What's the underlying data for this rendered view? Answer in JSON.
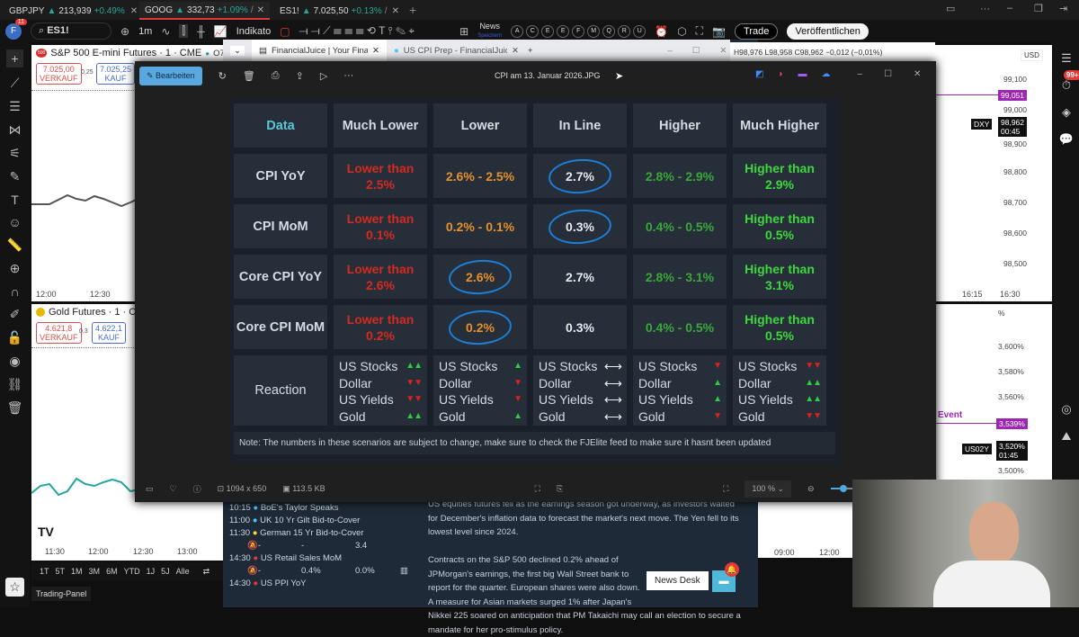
{
  "browser_tabs": [
    {
      "symbol": "GBPJPY",
      "price": "213,939",
      "change": "+0.49%",
      "suffix": "/"
    },
    {
      "symbol": "GOOG",
      "price": "332,73",
      "change": "+1.09%",
      "suffix": "/ Equ"
    },
    {
      "symbol": "ES1!",
      "price": "7.025,50",
      "change": "+0.13%",
      "suffix": "/ New"
    }
  ],
  "toolbar": {
    "avatar": "F",
    "badge": "11",
    "symbol": "ES1!",
    "interval": "1m",
    "indicators": "Indikato",
    "news": "News",
    "news_sub": "Speichern",
    "letters": [
      "A",
      "C",
      "E",
      "E",
      "F",
      "M",
      "Q",
      "R",
      "U"
    ],
    "trade": "Trade",
    "publish": "Veröffentlichen"
  },
  "chart_top": {
    "title": "S&P 500 E-mini Futures · 1 · CME",
    "ohlc": "O7.026,",
    "sell_price": "7.025,00",
    "sell_label": "VERKAUF",
    "spread": "0,25",
    "buy_price": "7.025,25",
    "buy_label": "KAUF",
    "times": [
      "12:00",
      "12:30"
    ]
  },
  "chart_gold": {
    "title": "Gold Futures · 1 · COM",
    "sell_price": "4.621,8",
    "sell_label": "VERKAUF",
    "spread": "0,3",
    "buy_price": "4.622,1",
    "buy_label": "KAUF",
    "times": [
      "11:30",
      "12:00",
      "12:30",
      "13:00"
    ],
    "ranges": [
      "1T",
      "5T",
      "1M",
      "3M",
      "6M",
      "YTD",
      "1J",
      "5J",
      "Alle"
    ],
    "panel": "Trading-Panel"
  },
  "chart_right": {
    "ohlc": "H98,976 L98,958 C98,962 −0,012 (−0,01%)",
    "currency": "USD",
    "prices": [
      "99,100",
      "99,000",
      "98,900",
      "98,800",
      "98,700",
      "98,600",
      "98,500"
    ],
    "purple_tag": "99,051",
    "symbol_tag": "DXY",
    "last": "98,962",
    "countdown": "00:45",
    "times": [
      "16:15",
      "16:30"
    ],
    "notif": "99+"
  },
  "chart_right2": {
    "unit": "%",
    "prices": [
      "3,600%",
      "3,580%",
      "3,560%",
      "3,500%"
    ],
    "event": "Event",
    "purple_tag": "3,539%",
    "symbol_tag": "US02Y",
    "last": "3,520%",
    "countdown": "01:45",
    "times": [
      "09:00",
      "12:00"
    ]
  },
  "browser": {
    "tabs": [
      {
        "label": "FinancialJuice | Your Financial U"
      },
      {
        "label": "US CPI Prep - FinancialJuice"
      }
    ]
  },
  "viewer": {
    "edit": "Bearbeiten",
    "filename": "CPI am 13. Januar 2026.JPG",
    "dimensions": "1094 x 650",
    "size": "113.5 KB",
    "zoom": "100 %"
  },
  "cpi_table": {
    "headers": [
      "Data",
      "Much Lower",
      "Lower",
      "In Line",
      "Higher",
      "Much Higher"
    ],
    "rows": [
      {
        "label": "CPI YoY",
        "values": [
          "Lower than 2.5%",
          "2.6% - 2.5%",
          "2.7%",
          "2.8% - 2.9%",
          "Higher than 2.9%"
        ],
        "circled": 2
      },
      {
        "label": "CPI MoM",
        "values": [
          "Lower than 0.1%",
          "0.2% - 0.1%",
          "0.3%",
          "0.4% - 0.5%",
          "Higher than 0.5%"
        ],
        "circled": 2
      },
      {
        "label": "Core CPI YoY",
        "values": [
          "Lower than 2.6%",
          "2.6%",
          "2.7%",
          "2.8% - 3.1%",
          "Higher than 3.1%"
        ],
        "circled": 1
      },
      {
        "label": "Core CPI MoM",
        "values": [
          "Lower than 0.2%",
          "0.2%",
          "0.3%",
          "0.4% - 0.5%",
          "Higher than 0.5%"
        ],
        "circled": 1
      }
    ],
    "colors": [
      "#d42a22",
      "#e8902a",
      "#e6e9ee",
      "#3aa83a",
      "#3ed83e"
    ],
    "data_color": "#5cc6d6",
    "reaction_label": "Reaction",
    "assets": [
      "US Stocks",
      "Dollar",
      "US Yields",
      "Gold"
    ],
    "reactions": [
      [
        "▲▲",
        "▼▼",
        "▼▼",
        "▲▲"
      ],
      [
        "▲",
        "▼",
        "▼",
        "▲"
      ],
      [
        "⟷",
        "⟷",
        "⟷",
        "⟷"
      ],
      [
        "▼",
        "▲",
        "▲",
        "▼"
      ],
      [
        "▼▼",
        "▲▲",
        "▲▲",
        "▼▼"
      ]
    ],
    "note": "Note: The numbers in these scenarios are subject to change, make sure to check the FJElite feed to make sure it hasnt been updated"
  },
  "calendar": [
    {
      "time": "10:15",
      "dot": "#4fc3f7",
      "title": "BoE's Taylor Speaks"
    },
    {
      "time": "11:00",
      "dot": "#4fc3f7",
      "title": "UK 10 Yr Gilt Bid-to-Cover"
    },
    {
      "time": "11:30",
      "dot": "#fdd835",
      "title": "German 15 Yr Bid-to-Cover",
      "actual": "-",
      "forecast": "-",
      "previous": "3.4"
    },
    {
      "time": "14:30",
      "dot": "#e53935",
      "title": "US Retail Sales MoM",
      "actual": "-",
      "forecast": "0.4%",
      "previous": "0.0%"
    },
    {
      "time": "14:30",
      "dot": "#e53935",
      "title": "US PPI YoY"
    }
  ],
  "news": {
    "p1": "US equities futures fell as the earnings season got underway, as investors waited for December's inflation data to forecast the market's next move. The Yen fell to its lowest level since 2024.",
    "p2": "Contracts on the S&P 500 declined 0.2% ahead of JPMorgan's earnings, the first big Wall Street bank to report for the quarter. European shares were also down. A measure for Asian markets surged 1% after Japan's Nikkei 225 soared on anticipation that PM Takaichi may call an election to secure a mandate for her pro-stimulus policy.",
    "desk": "News Desk"
  }
}
